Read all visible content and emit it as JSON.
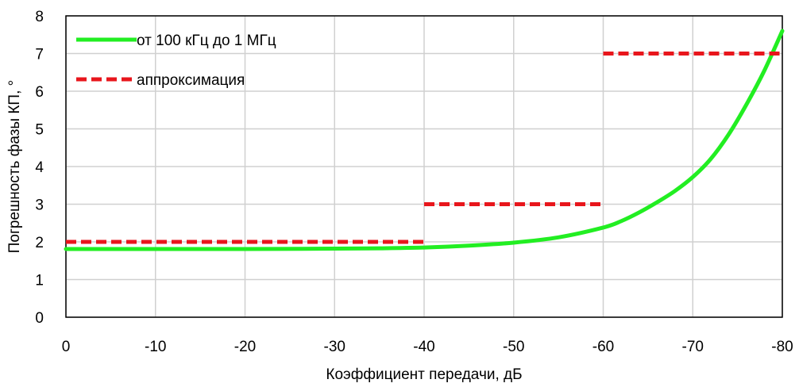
{
  "chart_data": {
    "type": "line",
    "title": "",
    "xlabel": "Коэффициент передачи, дБ",
    "ylabel": "Погрешность фазы КП, °",
    "xlim": [
      0,
      -80
    ],
    "ylim": [
      0,
      8
    ],
    "x_ticks": [
      "0",
      "-10",
      "-20",
      "-30",
      "-40",
      "-50",
      "-60",
      "-70",
      "-80"
    ],
    "y_ticks": [
      "0",
      "1",
      "2",
      "3",
      "4",
      "5",
      "6",
      "7",
      "8"
    ],
    "grid": true,
    "legend_position": "top-left",
    "series": [
      {
        "name": "от 100 кГц до 1 МГц",
        "style": "solid",
        "color": "#22ee22",
        "x": [
          0,
          -10,
          -20,
          -30,
          -35,
          -40,
          -45,
          -50,
          -55,
          -60,
          -62,
          -64,
          -66,
          -68,
          -70,
          -72,
          -74,
          -76,
          -78,
          -80
        ],
        "y": [
          1.81,
          1.81,
          1.81,
          1.82,
          1.83,
          1.85,
          1.9,
          1.98,
          2.12,
          2.38,
          2.55,
          2.78,
          3.05,
          3.35,
          3.72,
          4.2,
          4.85,
          5.65,
          6.55,
          7.6
        ]
      },
      {
        "name": "аппроксимация",
        "style": "dashed",
        "color": "#e8161c",
        "segments": [
          {
            "x": [
              0,
              -40
            ],
            "y": 2
          },
          {
            "x": [
              -40,
              -60
            ],
            "y": 3
          },
          {
            "x": [
              -60,
              -80
            ],
            "y": 7
          }
        ]
      }
    ]
  }
}
